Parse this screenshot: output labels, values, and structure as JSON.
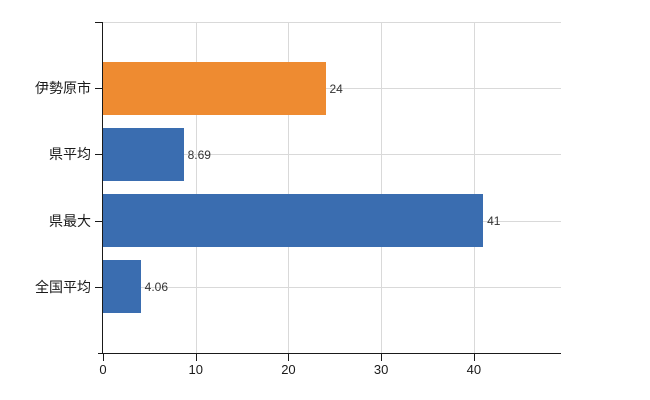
{
  "chart_data": {
    "type": "bar",
    "orientation": "horizontal",
    "title": "",
    "categories": [
      "伊勢原市",
      "県平均",
      "県最大",
      "全国平均"
    ],
    "values": [
      24,
      8.69,
      41,
      4.06
    ],
    "value_labels": [
      "24",
      "8.69",
      "41",
      "4.06"
    ],
    "bar_colors": [
      "#ee8b31",
      "#3a6db0",
      "#3a6db0",
      "#3a6db0"
    ],
    "x_axis": {
      "min": 0,
      "max": 49.4,
      "ticks": [
        0,
        10,
        20,
        30,
        40
      ],
      "tick_labels": [
        "0",
        "10",
        "20",
        "30",
        "40"
      ]
    },
    "grid": true,
    "legend": false,
    "colors": {
      "axis": "#1a1a1a",
      "gridline": "#d9d9d9",
      "text": "#1a1a1a",
      "value_text": "#333333"
    }
  }
}
